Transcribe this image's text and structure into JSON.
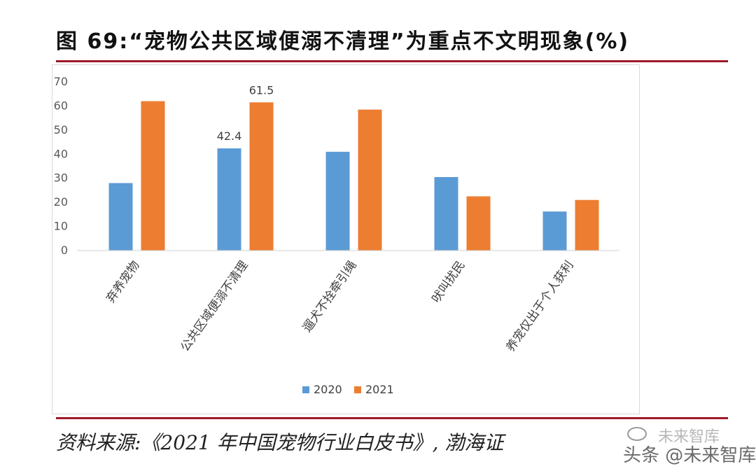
{
  "title": "图 69:“宠物公共区域便溺不清理”为重点不文明现象(%)",
  "source": "资料来源:《2021 年中国宠物行业白皮书》, 渤海证",
  "watermark": {
    "line1": "未来智库",
    "line2": "头条 @未来智库"
  },
  "colors": {
    "rule": "#a0182a",
    "s2020": "#5b9bd5",
    "s2021": "#ed7d31"
  },
  "chart_data": {
    "type": "bar",
    "categories": [
      "弃养宠物",
      "公共区域便溺不清理",
      "遛犬不拴牵引绳",
      "吠叫扰民",
      "养宠仅出于个人获利"
    ],
    "series": [
      {
        "name": "2020",
        "values": [
          28,
          42.4,
          41,
          30.5,
          16.2
        ]
      },
      {
        "name": "2021",
        "values": [
          62,
          61.5,
          58.5,
          22.5,
          21
        ]
      }
    ],
    "data_labels": [
      {
        "series": 0,
        "index": 1,
        "text": "42.4"
      },
      {
        "series": 1,
        "index": 1,
        "text": "61.5"
      }
    ],
    "ylim": [
      0,
      70
    ],
    "yticks": [
      "0",
      "10",
      "20",
      "30",
      "40",
      "50",
      "60",
      "70"
    ],
    "grid": false,
    "legend_position": "bottom",
    "xlabel": "",
    "ylabel": ""
  }
}
